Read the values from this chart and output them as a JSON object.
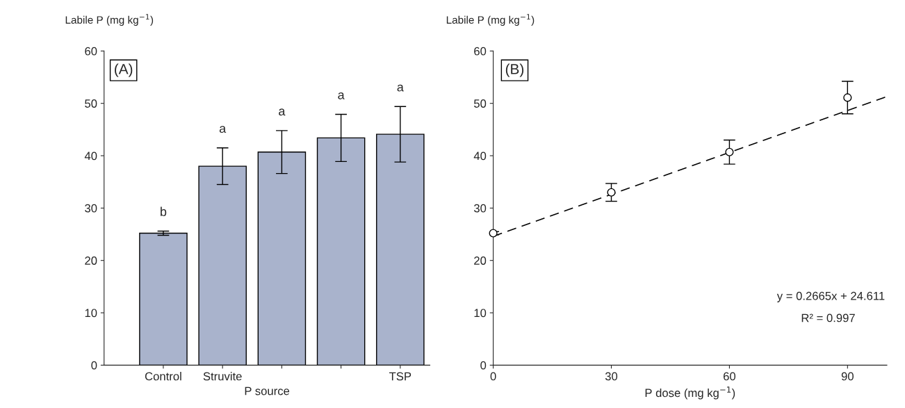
{
  "chart_data": [
    {
      "type": "bar",
      "ylabel": "Labile P (mg kg$^{−1}$)",
      "xlabel": "P source",
      "categories": [
        "Control",
        "Struvite",
        null,
        null,
        "TSP"
      ],
      "values": [
        25.2,
        38.0,
        40.7,
        43.4,
        44.1
      ],
      "errors": [
        0.4,
        3.5,
        4.1,
        4.5,
        5.3
      ],
      "color": "#a9b3cc",
      "ylim": [
        0,
        60
      ],
      "yticks": [
        0,
        10,
        20,
        30,
        40,
        50,
        60
      ],
      "annotations": [
        "(A)",
        "b",
        "a",
        "a",
        "a",
        "a"
      ]
    },
    {
      "type": "scatter",
      "ylabel": "Labile P (mg kg$^{−1}$)",
      "xlabel": "P dose (mg kg$^{−1}$)",
      "series": [
        {
          "type": "scatter",
          "color": "#000000",
          "x": [
            0,
            30,
            60,
            90
          ],
          "values": [
            25.2,
            33.0,
            40.7,
            51.1
          ],
          "errors": [
            0.3,
            1.7,
            2.3,
            3.1
          ],
          "marker": "circle"
        },
        {
          "type": "line",
          "color": "#000000",
          "x": [
            0,
            100
          ],
          "values": [
            24.6,
            51.3
          ],
          "line_style": "dashed"
        }
      ],
      "xlim": [
        0,
        100
      ],
      "xticks": [
        0,
        30,
        60,
        90
      ],
      "ylim": [
        0,
        60
      ],
      "yticks": [
        0,
        10,
        20,
        30,
        40,
        50,
        60
      ],
      "annotations": [
        "(B)",
        "y = 0.2665x + 24.611",
        "R² = 0.997"
      ]
    }
  ]
}
